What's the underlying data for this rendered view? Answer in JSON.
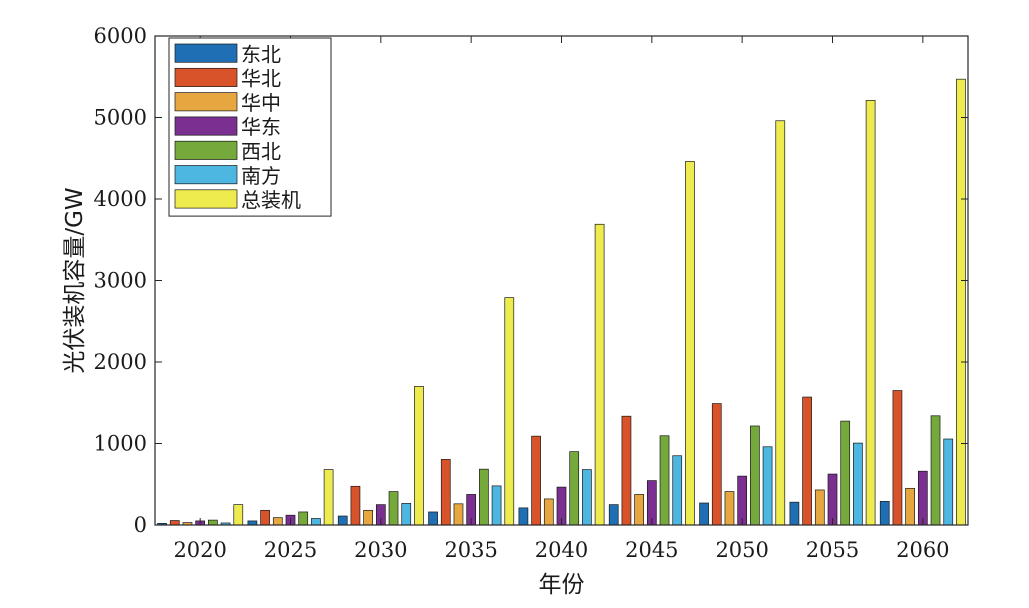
{
  "chart_data": {
    "type": "bar",
    "title": "",
    "xlabel": "年份",
    "ylabel": "光伏装机容量/GW",
    "ylim": [
      0,
      6000
    ],
    "yticks": [
      0,
      1000,
      2000,
      3000,
      4000,
      5000,
      6000
    ],
    "ytick_labels": [
      "0",
      "1000",
      "2000",
      "3000",
      "4000",
      "5000",
      "6000"
    ],
    "grid": false,
    "legend_position": "top-left",
    "categories": [
      "2020",
      "2025",
      "2030",
      "2035",
      "2040",
      "2045",
      "2050",
      "2055",
      "2060"
    ],
    "series": [
      {
        "name": "东北",
        "color": "#1f6fb5",
        "values": [
          20,
          50,
          110,
          160,
          210,
          250,
          270,
          280,
          290
        ]
      },
      {
        "name": "华北",
        "color": "#d9532a",
        "values": [
          55,
          180,
          475,
          805,
          1090,
          1335,
          1490,
          1570,
          1650
        ]
      },
      {
        "name": "华中",
        "color": "#e7a740",
        "values": [
          30,
          90,
          180,
          260,
          320,
          375,
          410,
          430,
          450
        ]
      },
      {
        "name": "华东",
        "color": "#7b2f90",
        "values": [
          50,
          120,
          250,
          375,
          465,
          545,
          600,
          625,
          660
        ]
      },
      {
        "name": "西北",
        "color": "#75a93c",
        "values": [
          60,
          160,
          410,
          685,
          900,
          1095,
          1215,
          1275,
          1340
        ]
      },
      {
        "name": "南方",
        "color": "#4db7e2",
        "values": [
          25,
          80,
          265,
          480,
          680,
          850,
          960,
          1005,
          1055
        ]
      },
      {
        "name": "总装机",
        "color": "#eeeb4f",
        "values": [
          250,
          680,
          1700,
          2790,
          3690,
          4460,
          4960,
          5210,
          5470
        ]
      }
    ]
  }
}
